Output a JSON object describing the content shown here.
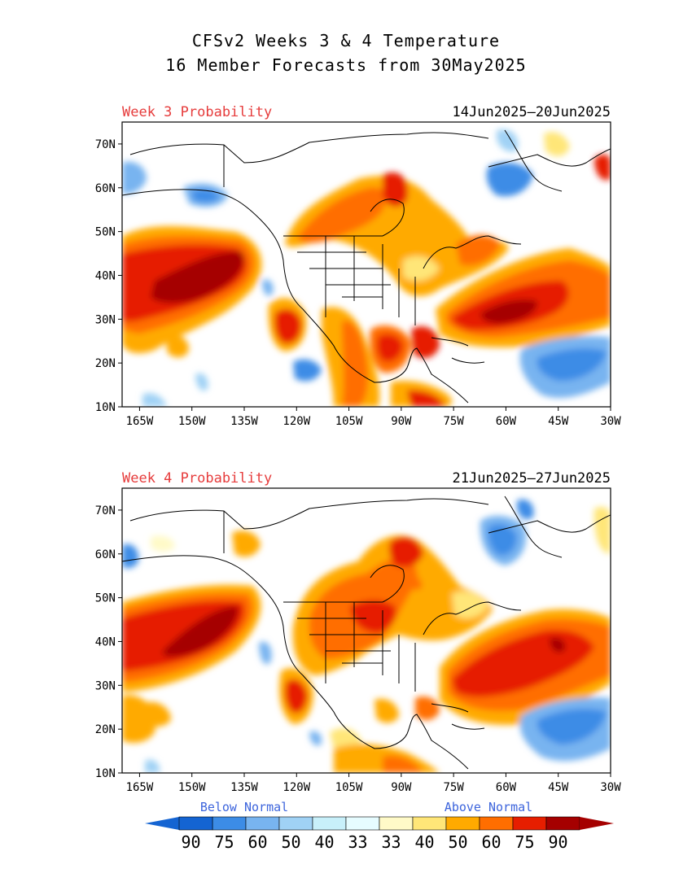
{
  "title": {
    "line1": "CFSv2 Weeks 3 & 4 Temperature",
    "line2": "16 Member Forecasts from 30May2025"
  },
  "panels": [
    {
      "label": "Week 3 Probability",
      "dates": "14Jun2025—20Jun2025"
    },
    {
      "label": "Week 4 Probability",
      "dates": "21Jun2025—27Jun2025"
    }
  ],
  "axes": {
    "lat_ticks": [
      "70N",
      "60N",
      "50N",
      "40N",
      "30N",
      "20N",
      "10N"
    ],
    "lon_ticks": [
      "165W",
      "150W",
      "135W",
      "120W",
      "105W",
      "90W",
      "75W",
      "60W",
      "45W",
      "30W"
    ]
  },
  "legend": {
    "below_label": "Below Normal",
    "above_label": "Above Normal",
    "below_values": [
      "90",
      "75",
      "60",
      "50",
      "40",
      "33"
    ],
    "above_values": [
      "33",
      "40",
      "50",
      "60",
      "75",
      "90"
    ],
    "below_colors": [
      "#1464d2",
      "#3c8ce6",
      "#78b4f0",
      "#a0d2f5",
      "#c8f0fa",
      "#e6fcff"
    ],
    "above_colors": [
      "#fffac8",
      "#ffe678",
      "#ffaa00",
      "#ff6e00",
      "#e61e00",
      "#a50000"
    ],
    "label_below_color": "#3c64dc",
    "label_above_color": "#3c64dc",
    "panel_label_color": "#e63c3c"
  }
}
